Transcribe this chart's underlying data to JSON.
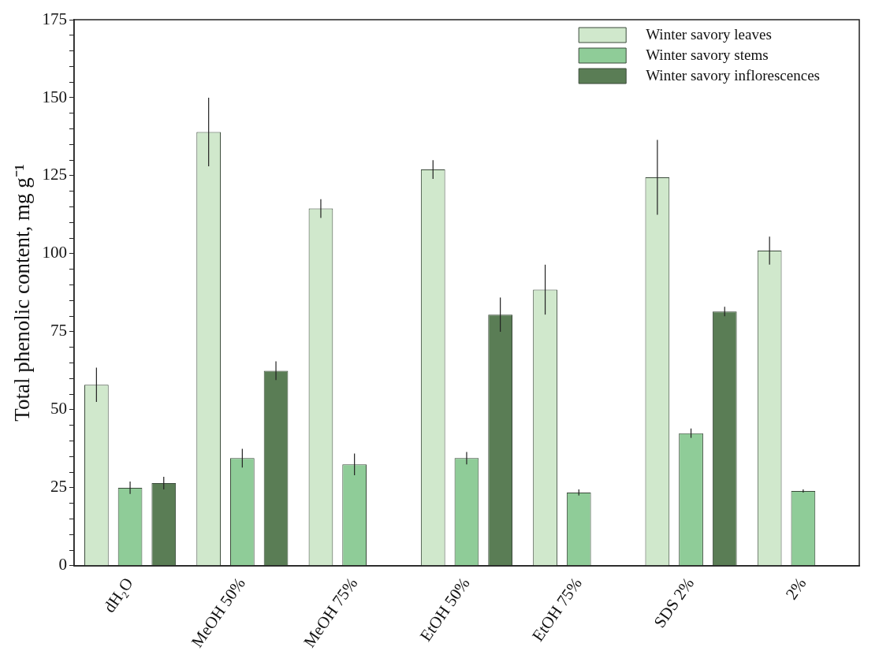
{
  "chart_data": {
    "type": "bar",
    "ylabel": "Total phenolic content, mg g⁻¹",
    "categories": [
      "dH₂O",
      "MeOH 50%",
      "MeOH 75%",
      "EtOH 50%",
      "EtOH 75%",
      "SDS 2%",
      "2%"
    ],
    "series": [
      {
        "name": "Winter savory leaves",
        "color": "#d0e8cc",
        "values": [
          58,
          139,
          114.5,
          127,
          88.5,
          124.5,
          101
        ],
        "errors": [
          5.5,
          11,
          3,
          3,
          8,
          12,
          4.5
        ]
      },
      {
        "name": "Winter savory stems",
        "color": "#8fcc98",
        "values": [
          25,
          34.5,
          32.5,
          34.5,
          23.5,
          42.5,
          24
        ],
        "errors": [
          2,
          3,
          3.5,
          2,
          1,
          1.5,
          0.5
        ]
      },
      {
        "name": "Winter savory inflorescences",
        "color": "#5a7d55",
        "values": [
          26.5,
          62.5,
          null,
          80.5,
          null,
          81.5,
          null
        ],
        "errors": [
          2,
          3,
          null,
          5.5,
          null,
          1.5,
          null
        ]
      }
    ],
    "ylim": [
      0,
      175
    ],
    "yticks": [
      0,
      {
        "value": 5,
        "label": null
      },
      {
        "value": 10,
        "label": null
      },
      {
        "value": 15,
        "label": null
      },
      {
        "value": 20,
        "label": null
      },
      25,
      {
        "value": 30,
        "label": null
      },
      {
        "value": 35,
        "label": null
      },
      {
        "value": 40,
        "label": null
      },
      {
        "value": 45,
        "label": null
      },
      50,
      {
        "value": 55,
        "label": null
      },
      {
        "value": 60,
        "label": null
      },
      {
        "value": 65,
        "label": null
      },
      {
        "value": 70,
        "label": null
      },
      75,
      {
        "value": 80,
        "label": null
      },
      {
        "value": 85,
        "label": null
      },
      {
        "value": 90,
        "label": null
      },
      {
        "value": 95,
        "label": null
      },
      100,
      {
        "value": 105,
        "label": null
      },
      {
        "value": 110,
        "label": null
      },
      {
        "value": 115,
        "label": null
      },
      {
        "value": 120,
        "label": null
      },
      125,
      {
        "value": 130,
        "label": null
      },
      {
        "value": 135,
        "label": null
      },
      {
        "value": 140,
        "label": null
      },
      {
        "value": 145,
        "label": null
      },
      150,
      {
        "value": 155,
        "label": null
      },
      {
        "value": 160,
        "label": null
      },
      {
        "value": 165,
        "label": null
      },
      {
        "value": 170,
        "label": null
      },
      175
    ],
    "grid": false,
    "legend": "top right"
  }
}
